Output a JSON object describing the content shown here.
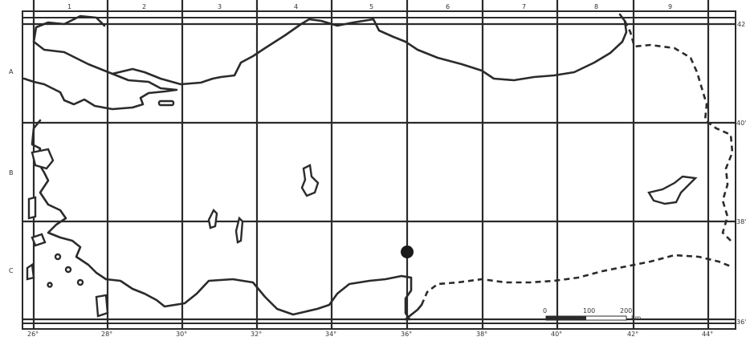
{
  "grid": {
    "columns": [
      "1",
      "2",
      "3",
      "4",
      "5",
      "6",
      "7",
      "8",
      "9"
    ],
    "rows": [
      "A",
      "B",
      "C"
    ],
    "longitudes": [
      "26°",
      "28°",
      "30°",
      "32°",
      "34°",
      "36°",
      "38°",
      "40°",
      "42°",
      "44°"
    ],
    "latitudes": [
      "42",
      "40'",
      "38'",
      "36'"
    ]
  },
  "scale_bar": {
    "ticks": [
      "0",
      "100",
      "200"
    ],
    "unit": "km"
  },
  "marker": {
    "type": "point"
  },
  "colors": {
    "ink": "#2b2b2b",
    "paper": "#ffffff"
  }
}
